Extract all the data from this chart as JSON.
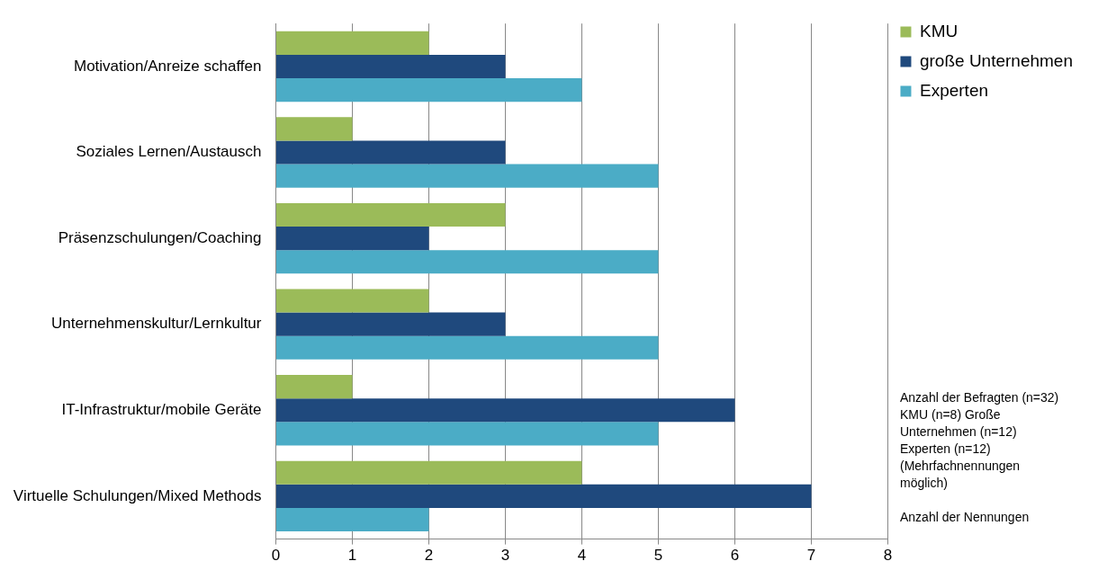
{
  "chart_data": {
    "type": "bar",
    "orientation": "horizontal",
    "categories": [
      "Motivation/Anreize schaffen",
      "Soziales Lernen/Austausch",
      "Präsenzschulungen/Coaching",
      "Unternehmenskultur/Lernkultur",
      "IT-Infrastruktur/mobile Geräte",
      "Virtuelle Schulungen/Mixed Methods"
    ],
    "series": [
      {
        "name": "KMU",
        "color": "#9bbb59",
        "values": [
          2,
          1,
          3,
          2,
          1,
          4
        ]
      },
      {
        "name": "große Unternehmen",
        "color": "#1f497d",
        "values": [
          3,
          3,
          2,
          3,
          6,
          7
        ]
      },
      {
        "name": "Experten",
        "color": "#4bacc6",
        "values": [
          4,
          5,
          5,
          5,
          5,
          2
        ]
      }
    ],
    "xlim": [
      0,
      8
    ],
    "xticks": [
      0,
      1,
      2,
      3,
      4,
      5,
      6,
      7,
      8
    ],
    "grid": "x",
    "legend": "top right",
    "annotations": [
      "Anzahl der Befragten (n=32) KMU (n=8) Große  Unternehmen (n=12) Experten (n=12) (Mehrfachnennungen möglich)",
      "Anzahl der Nennungen"
    ]
  }
}
